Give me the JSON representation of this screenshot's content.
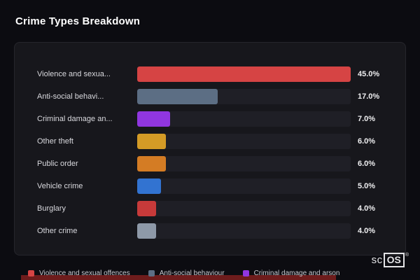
{
  "title": "Crime Types Breakdown",
  "chart_data": {
    "type": "bar",
    "orientation": "horizontal",
    "title": "Crime Types Breakdown",
    "categories": [
      "Violence and sexual offences",
      "Anti-social behaviour",
      "Criminal damage and arson",
      "Other theft",
      "Public order",
      "Vehicle crime",
      "Burglary",
      "Other crime"
    ],
    "display_labels": [
      "Violence and sexua...",
      "Anti-social behavi...",
      "Criminal damage an...",
      "Other theft",
      "Public order",
      "Vehicle crime",
      "Burglary",
      "Other crime"
    ],
    "values": [
      45.0,
      17.0,
      7.0,
      6.0,
      6.0,
      5.0,
      4.0,
      4.0
    ],
    "value_labels": [
      "45.0%",
      "17.0%",
      "7.0%",
      "6.0%",
      "6.0%",
      "5.0%",
      "4.0%",
      "4.0%"
    ],
    "colors": [
      "#d64444",
      "#5c6e84",
      "#9036e0",
      "#d49b26",
      "#d47c24",
      "#3273d1",
      "#c73a3a",
      "#8e99a8"
    ],
    "xlim": [
      0,
      45
    ],
    "grid": false,
    "legend_position": "bottom",
    "legend": [
      {
        "label": "Violence and sexual offences",
        "color": "#d64444"
      },
      {
        "label": "Anti-social behaviour",
        "color": "#5c6e84"
      },
      {
        "label": "Criminal damage and arson",
        "color": "#9036e0"
      }
    ]
  },
  "watermark": {
    "prefix": "sc",
    "boxed": "OS",
    "reg": "®"
  }
}
